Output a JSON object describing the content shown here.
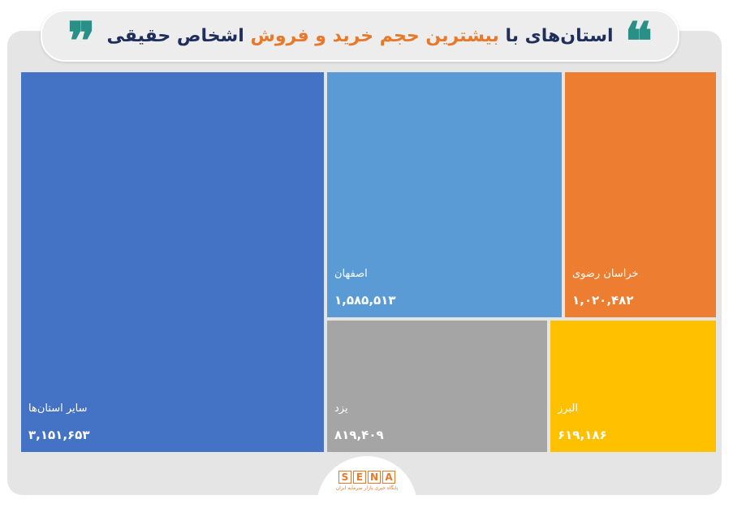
{
  "header": {
    "title_part1": "استان‌های با",
    "title_highlight": "بیشترین حجم خرید و فروش",
    "title_part2": "اشخاص حقیقی",
    "quote_open": "❝",
    "quote_close": "❞"
  },
  "colors": {
    "title": "#1f2e5a",
    "highlight": "#e8782a",
    "quote": "#2a8f86",
    "frame": "#e5e5e5"
  },
  "chart_data": {
    "type": "treemap",
    "title": "استان‌های با بیشترین حجم خرید و فروش اشخاص حقیقی",
    "items": [
      {
        "label": "سایر استان‌ها",
        "value": 3151653,
        "display_value": "۳,۱۵۱,۶۵۳",
        "color": "#4472c4"
      },
      {
        "label": "اصفهان",
        "value": 1585513,
        "display_value": "۱,۵۸۵,۵۱۳",
        "color": "#5b9bd5"
      },
      {
        "label": "خراسان رضوی",
        "value": 1020482,
        "display_value": "۱,۰۲۰,۴۸۲",
        "color": "#ed7d31"
      },
      {
        "label": "یزد",
        "value": 819409,
        "display_value": "۸۱۹,۴۰۹",
        "color": "#a5a5a5"
      },
      {
        "label": "البرز",
        "value": 619186,
        "display_value": "۶۱۹,۱۸۶",
        "color": "#ffc000"
      }
    ]
  },
  "logo": {
    "letters": [
      "S",
      "E",
      "N",
      "A"
    ],
    "subtitle": "پایگاه خبری بازار سرمایه ایران"
  }
}
